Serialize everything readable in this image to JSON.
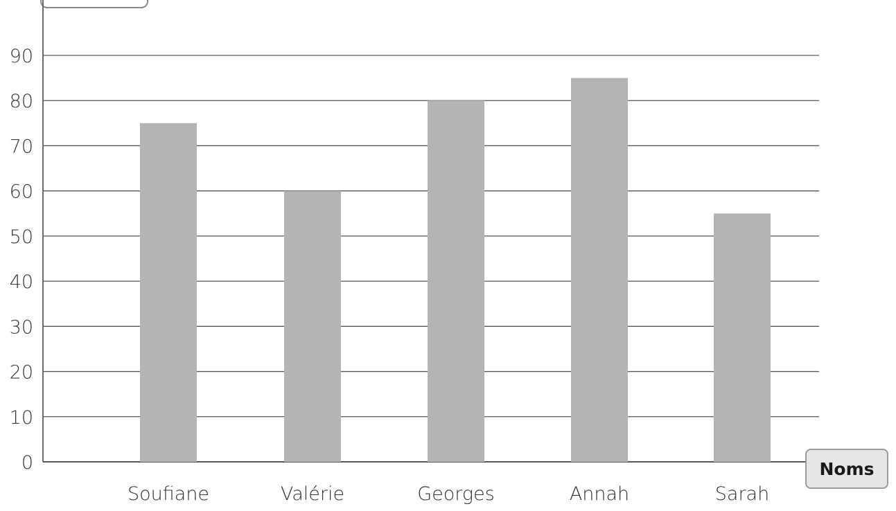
{
  "chart_data": {
    "type": "bar",
    "categories": [
      "Soufiane",
      "Valérie",
      "Georges",
      "Annah",
      "Sarah"
    ],
    "values": [
      75,
      60,
      80,
      85,
      55
    ],
    "xlabel": "Noms",
    "ylabel": "",
    "ylim": [
      0,
      90
    ],
    "y_ticks": [
      0,
      10,
      20,
      30,
      40,
      50,
      60,
      70,
      80,
      90
    ],
    "grid": true,
    "colors": {
      "bar": "#b4b4b4",
      "grid": "#555555",
      "axis": "#555555"
    }
  }
}
